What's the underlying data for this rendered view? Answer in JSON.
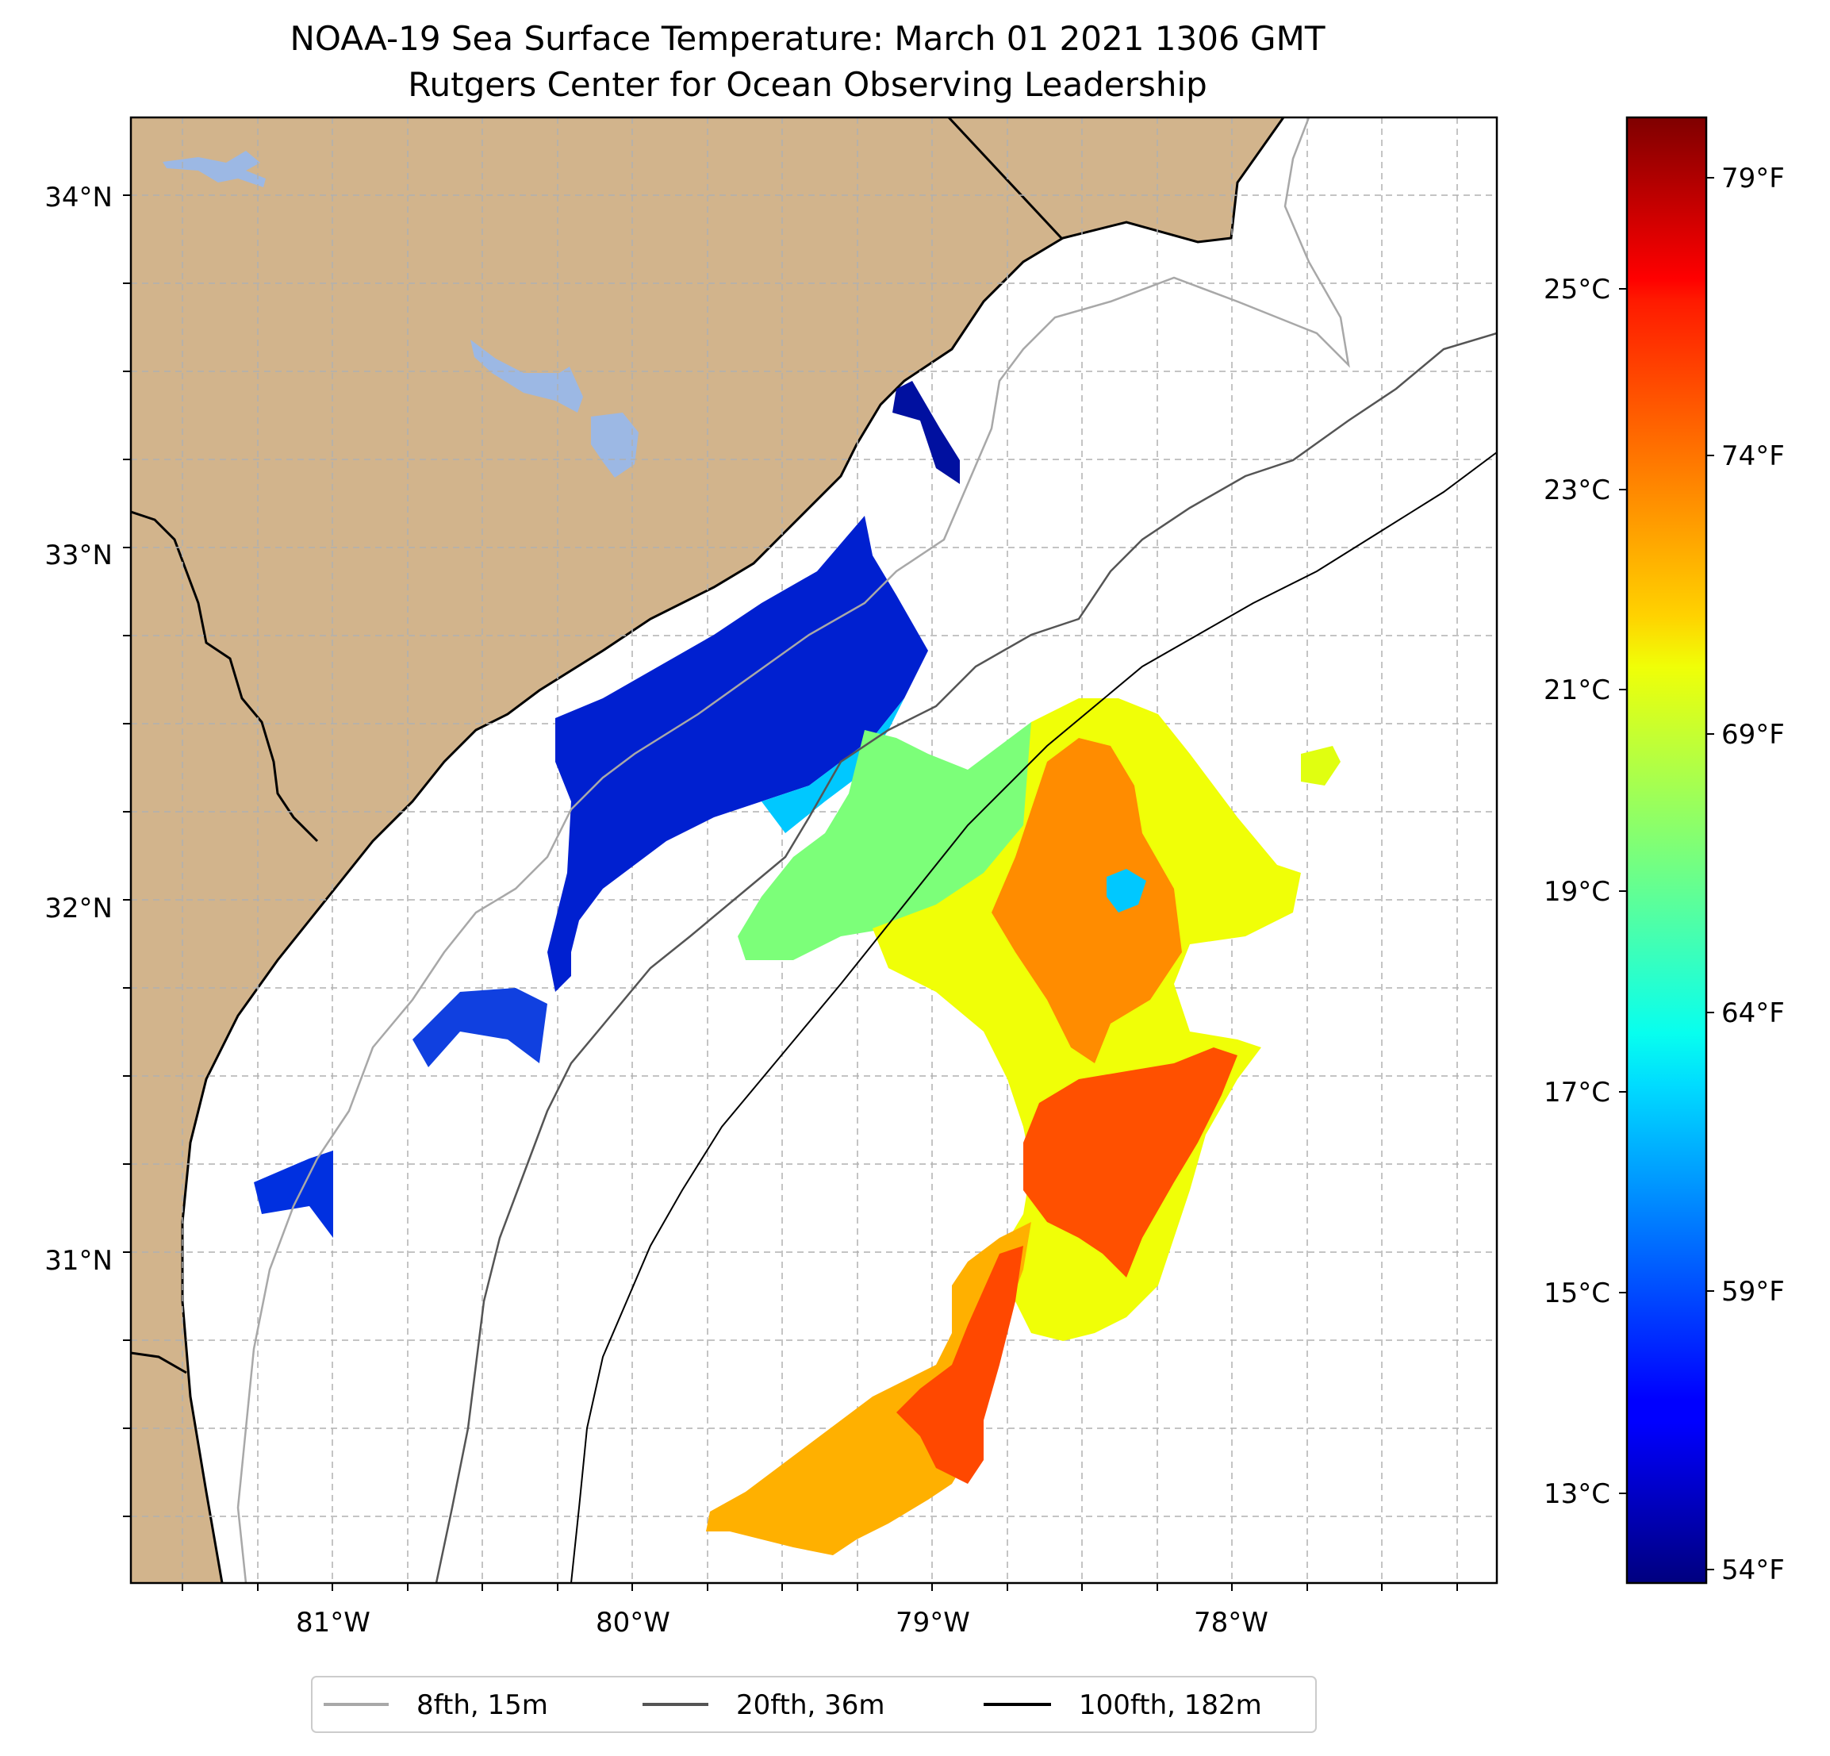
{
  "title": {
    "line1": "NOAA-19 Sea Surface Temperature: March 01 2021 1306 GMT",
    "line2": "Rutgers Center for Ocean Observing Leadership"
  },
  "map": {
    "lat_labels": [
      "34°N",
      "33°N",
      "32°N",
      "31°N"
    ],
    "lon_labels": [
      "81°W",
      "80°W",
      "79°W",
      "78°W"
    ],
    "land_color": "#d2b48c",
    "water_color": "#9cb8e4",
    "ocean_color": "#ffffff"
  },
  "colorbar": {
    "celsius_labels": [
      "25°C",
      "23°C",
      "21°C",
      "19°C",
      "17°C",
      "15°C",
      "13°C"
    ],
    "fahrenheit_labels": [
      "79°F",
      "74°F",
      "69°F",
      "64°F",
      "59°F",
      "54°F"
    ],
    "colormap": "jet",
    "range_f": [
      53.5,
      80.5
    ]
  },
  "legend": {
    "items": [
      {
        "label": "8fth, 15m",
        "color": "#a8a8a8"
      },
      {
        "label": "20fth, 36m",
        "color": "#555555"
      },
      {
        "label": "100fth, 182m",
        "color": "#000000"
      }
    ]
  }
}
